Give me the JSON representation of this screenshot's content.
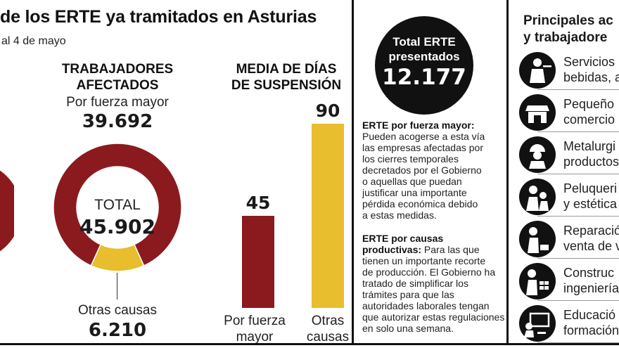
{
  "header": {
    "title": "de los ERTE ya tramitados en Asturias",
    "subtitle": "al 4 de mayo"
  },
  "colors": {
    "primary": "#8b1a1f",
    "secondary": "#e8bd2e",
    "ink": "#111111"
  },
  "chart_data": [
    {
      "type": "pie",
      "title": "TRABAJADORES AFECTADOS",
      "center_label": "TOTAL",
      "center_value": "45.902",
      "slices": [
        {
          "name": "Por fuerza mayor",
          "value": 39692,
          "label": "39.692",
          "color": "#8b1a1f"
        },
        {
          "name": "Otras causas",
          "value": 6210,
          "label": "6.210",
          "color": "#e8bd2e"
        }
      ]
    },
    {
      "type": "bar",
      "title": "MEDIA DE DÍAS DE SUSPENSIÓN",
      "categories": [
        "Por fuerza mayor",
        "Otras causas"
      ],
      "values": [
        45,
        90
      ],
      "value_labels": [
        "45",
        "90"
      ],
      "colors": [
        "#8b1a1f",
        "#e8bd2e"
      ],
      "ylim": [
        0,
        90
      ]
    }
  ],
  "labels": {
    "bar_cat1_line1": "Por fuerza",
    "bar_cat1_line2": "mayor",
    "bar_cat2_line1": "Otras",
    "bar_cat2_line2": "causas"
  },
  "total_box": {
    "line1": "Total ERTE",
    "line2": "presentados",
    "value": "12.177"
  },
  "definitions": {
    "fuerza_title": "ERTE por fuerza mayor:",
    "fuerza_lines": [
      "Pueden acogerse a esta vía",
      "las empresas afectadas por",
      "los cierres temporales",
      "decretados por el Gobierno",
      "o aquellas que puedan",
      "justificar una importante",
      "pérdida económica debido",
      "a estas medidas."
    ],
    "causas_title1": "ERTE por causas",
    "causas_title2": "productivas:",
    "causas_first": " Para las que",
    "causas_lines": [
      "tienen un importante recorte",
      "de producción. El Gobierno ha",
      "tratado de simplificar los",
      "trámites para que las",
      "autoridades laborales tengan",
      "que autorizar estas regulaciones",
      "en solo una semana."
    ]
  },
  "activities": {
    "title_line1": "Principales ac",
    "title_line2": "y trabajadore",
    "items": [
      {
        "line1": "Servicios",
        "line2": "bebidas, a",
        "icon": "waiter-icon"
      },
      {
        "line1": "Pequeño",
        "line2": "comercio",
        "icon": "shop-icon"
      },
      {
        "line1": "Metalurgi",
        "line2": "productos",
        "icon": "worker-helmet-icon"
      },
      {
        "line1": "Peluqueri",
        "line2": "y estética",
        "icon": "hairdresser-icon"
      },
      {
        "line1": "Reparació",
        "line2": "venta de v",
        "icon": "mechanic-icon"
      },
      {
        "line1": "Construc",
        "line2": "ingeniería",
        "icon": "builder-icon"
      },
      {
        "line1": "Educació",
        "line2": "formación",
        "icon": "teacher-icon"
      }
    ]
  }
}
